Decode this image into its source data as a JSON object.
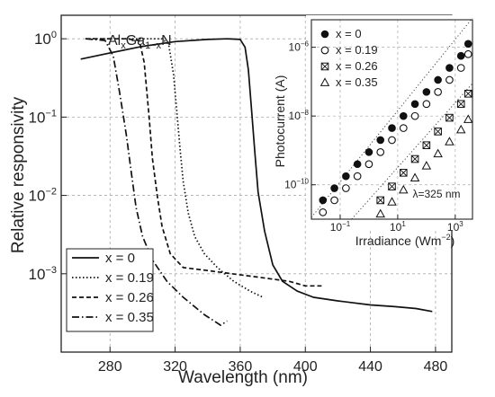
{
  "chart_data": [
    {
      "type": "line",
      "title": "",
      "annotation": {
        "base": "Al",
        "sub1": "x",
        "mid": "Ga",
        "sub2": "1−x",
        "end": "N"
      },
      "xlabel": "Wavelength (nm)",
      "ylabel": "Relative responsivity",
      "xlim": [
        250,
        490
      ],
      "ylim_log10": [
        -4,
        0.3
      ],
      "y_scale": "log",
      "x_ticks": [
        280,
        320,
        360,
        400,
        440,
        480
      ],
      "y_ticks": [
        {
          "base": "10",
          "exp": "0",
          "value": 1
        },
        {
          "base": "10",
          "exp": "−1",
          "value": 0.1
        },
        {
          "base": "10",
          "exp": "−2",
          "value": 0.01
        },
        {
          "base": "10",
          "exp": "−3",
          "value": 0.001
        }
      ],
      "grid": true,
      "legend_position": "bottom-left",
      "series": [
        {
          "name": "x = 0",
          "style": "solid",
          "points": [
            [
              262,
              0.55
            ],
            [
              280,
              0.66
            ],
            [
              300,
              0.8
            ],
            [
              320,
              0.92
            ],
            [
              340,
              0.98
            ],
            [
              352,
              1.0
            ],
            [
              360,
              0.98
            ],
            [
              363,
              0.78
            ],
            [
              365,
              0.4
            ],
            [
              367,
              0.12
            ],
            [
              369,
              0.035
            ],
            [
              371,
              0.011
            ],
            [
              375,
              0.0035
            ],
            [
              380,
              0.0013
            ],
            [
              386,
              0.0008
            ],
            [
              395,
              0.0006
            ],
            [
              405,
              0.0005
            ],
            [
              420,
              0.00045
            ],
            [
              440,
              0.0004
            ],
            [
              455,
              0.00038
            ],
            [
              468,
              0.00036
            ],
            [
              478,
              0.00033
            ]
          ]
        },
        {
          "name": "x = 0.19",
          "style": "dotted",
          "points": [
            [
              265,
              1.0
            ],
            [
              300,
              1.0
            ],
            [
              312,
              1.0
            ],
            [
              316,
              0.85
            ],
            [
              319,
              0.35
            ],
            [
              321,
              0.12
            ],
            [
              323,
              0.04
            ],
            [
              325,
              0.015
            ],
            [
              328,
              0.006
            ],
            [
              332,
              0.003
            ],
            [
              338,
              0.0018
            ],
            [
              346,
              0.0012
            ],
            [
              356,
              0.0008
            ],
            [
              366,
              0.0006
            ],
            [
              374,
              0.0005
            ]
          ]
        },
        {
          "name": "x = 0.26",
          "style": "dashed",
          "points": [
            [
              265,
              1.0
            ],
            [
              290,
              1.0
            ],
            [
              298,
              0.95
            ],
            [
              301,
              0.5
            ],
            [
              304,
              0.1
            ],
            [
              306,
              0.03
            ],
            [
              309,
              0.01
            ],
            [
              312,
              0.004
            ],
            [
              317,
              0.0018
            ],
            [
              325,
              0.0012
            ],
            [
              340,
              0.0011
            ],
            [
              355,
              0.001
            ],
            [
              372,
              0.0009
            ],
            [
              390,
              0.0008
            ],
            [
              400,
              0.0007
            ],
            [
              410,
              0.0007
            ]
          ]
        },
        {
          "name": "x = 0.35",
          "style": "dashdot",
          "points": [
            [
              265,
              1.0
            ],
            [
              277,
              0.95
            ],
            [
              282,
              0.6
            ],
            [
              286,
              0.2
            ],
            [
              290,
              0.06
            ],
            [
              293,
              0.02
            ],
            [
              296,
              0.007
            ],
            [
              300,
              0.003
            ],
            [
              306,
              0.0015
            ],
            [
              315,
              0.0008
            ],
            [
              325,
              0.0005
            ],
            [
              338,
              0.0003
            ],
            [
              348,
              0.00022
            ],
            [
              352,
              0.00025
            ]
          ]
        }
      ]
    },
    {
      "type": "scatter",
      "title": "",
      "xlabel": "Irradiance (Wm−2)",
      "ylabel": "Photocurrent (A)",
      "xlim_log10": [
        -2,
        3.6
      ],
      "ylim_log10": [
        -11,
        -5.2
      ],
      "x_scale": "log",
      "y_scale": "log",
      "x_ticks": [
        {
          "base": "10",
          "exp": "−1",
          "value": 0.1
        },
        {
          "base": "10",
          "exp": "1",
          "value": 10
        },
        {
          "base": "10",
          "exp": "3",
          "value": 1000
        }
      ],
      "y_ticks": [
        {
          "base": "10",
          "exp": "−6",
          "value": 1e-06
        },
        {
          "base": "10",
          "exp": "−8",
          "value": 1e-08
        },
        {
          "base": "10",
          "exp": "−10",
          "value": 1e-10
        }
      ],
      "annotation": "λ=325 nm",
      "grid": true,
      "legend_position": "top-left",
      "series": [
        {
          "name": "x = 0",
          "marker": "filled-circle",
          "points": [
            [
              -1.6,
              -10.45
            ],
            [
              -1.2,
              -10.1
            ],
            [
              -0.8,
              -9.75
            ],
            [
              -0.4,
              -9.4
            ],
            [
              0,
              -9.05
            ],
            [
              0.4,
              -8.7
            ],
            [
              0.8,
              -8.35
            ],
            [
              1.2,
              -8.0
            ],
            [
              1.6,
              -7.65
            ],
            [
              2.0,
              -7.3
            ],
            [
              2.4,
              -6.95
            ],
            [
              2.8,
              -6.6
            ],
            [
              3.2,
              -6.25
            ],
            [
              3.45,
              -5.9
            ]
          ]
        },
        {
          "name": "x = 0.19",
          "marker": "open-circle",
          "points": [
            [
              -1.6,
              -10.8
            ],
            [
              -1.2,
              -10.45
            ],
            [
              -0.8,
              -10.1
            ],
            [
              -0.4,
              -9.75
            ],
            [
              0,
              -9.4
            ],
            [
              0.4,
              -9.05
            ],
            [
              0.8,
              -8.7
            ],
            [
              1.2,
              -8.35
            ],
            [
              1.6,
              -8.0
            ],
            [
              2.0,
              -7.65
            ],
            [
              2.4,
              -7.3
            ],
            [
              2.8,
              -6.95
            ],
            [
              3.2,
              -6.6
            ],
            [
              3.45,
              -6.2
            ]
          ]
        },
        {
          "name": "x = 0.26",
          "marker": "crossed-square",
          "points": [
            [
              0.4,
              -10.45
            ],
            [
              0.8,
              -10.05
            ],
            [
              1.2,
              -9.65
            ],
            [
              1.6,
              -9.25
            ],
            [
              2.0,
              -8.85
            ],
            [
              2.4,
              -8.45
            ],
            [
              2.8,
              -8.05
            ],
            [
              3.2,
              -7.65
            ],
            [
              3.45,
              -7.35
            ]
          ]
        },
        {
          "name": "x = 0.35",
          "marker": "open-triangle",
          "points": [
            [
              0.4,
              -10.85
            ],
            [
              0.8,
              -10.5
            ],
            [
              1.2,
              -10.15
            ],
            [
              1.6,
              -9.8
            ],
            [
              2.0,
              -9.45
            ],
            [
              2.4,
              -9.1
            ],
            [
              2.8,
              -8.75
            ],
            [
              3.2,
              -8.4
            ],
            [
              3.45,
              -8.1
            ]
          ]
        }
      ]
    }
  ]
}
